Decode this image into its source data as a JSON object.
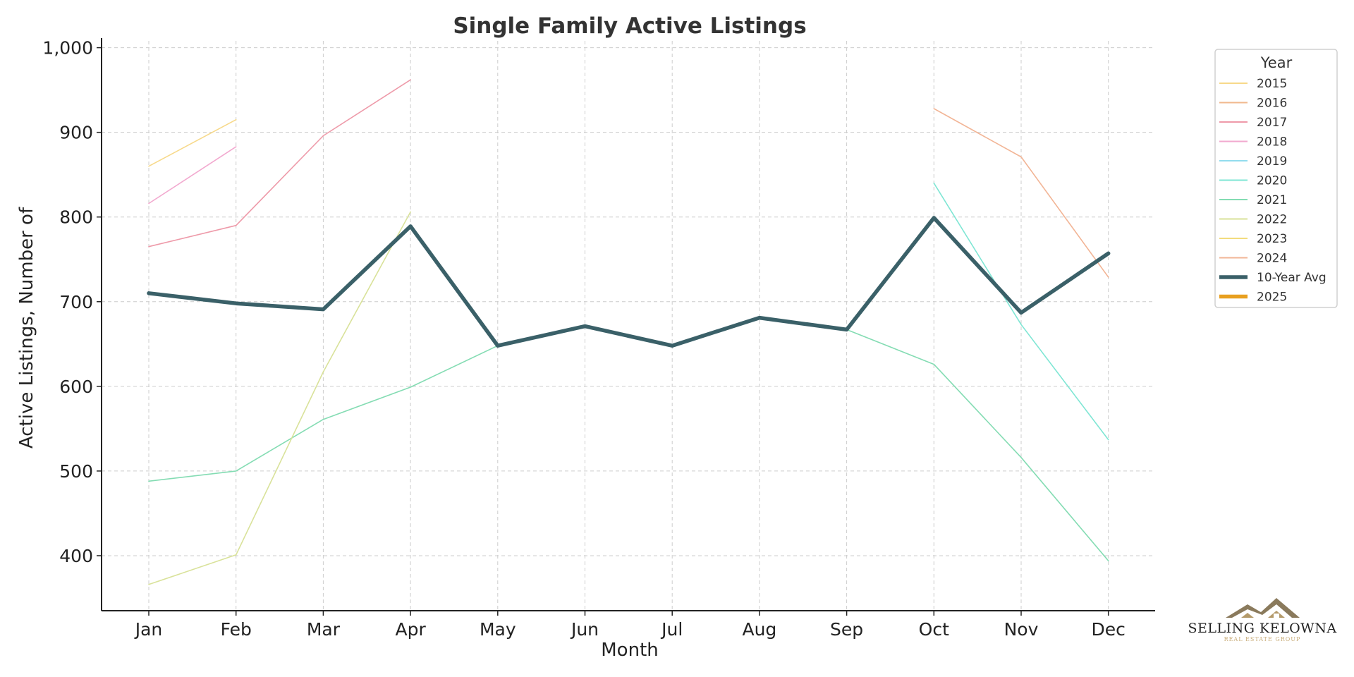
{
  "colors": {
    "2015": "#f7d98a",
    "2016": "#f1b98e",
    "2017": "#ee9aa9",
    "2018": "#f2a9cf",
    "2019": "#93dcee",
    "2020": "#7fe6d4",
    "2021": "#84dcb3",
    "2022": "#d9e29a",
    "2023": "#f2dc7e",
    "2024": "#f2b596",
    "avg": "#3a6068",
    "2025": "#e8a020"
  },
  "logo": {
    "name": "Selling Kelowna",
    "tagline": "Real Estate Group"
  },
  "chart_data": {
    "type": "line",
    "title": "Single Family Active Listings",
    "xlabel": "Month",
    "ylabel": "Active Listings, Number of",
    "categories": [
      "Jan",
      "Feb",
      "Mar",
      "Apr",
      "May",
      "Jun",
      "Jul",
      "Aug",
      "Sep",
      "Oct",
      "Nov",
      "Dec"
    ],
    "ylim": [
      335,
      1008
    ],
    "yticks": [
      400,
      500,
      600,
      700,
      800,
      900,
      1000
    ],
    "ytick_labels": [
      "400",
      "500",
      "600",
      "700",
      "800",
      "900",
      "1,000"
    ],
    "grid": true,
    "legend": {
      "title": "Year",
      "placement": "outside-right"
    },
    "series": [
      {
        "name": "2015",
        "color_key": "2015",
        "width": 1.6,
        "values": [
          860,
          915,
          null,
          null,
          null,
          null,
          null,
          null,
          null,
          null,
          null,
          null
        ]
      },
      {
        "name": "2016",
        "color_key": "2016",
        "width": 1.6,
        "values": [
          null,
          null,
          null,
          null,
          null,
          null,
          null,
          null,
          null,
          null,
          null,
          null
        ]
      },
      {
        "name": "2017",
        "color_key": "2017",
        "width": 1.6,
        "values": [
          765,
          790,
          896,
          962,
          null,
          null,
          null,
          null,
          null,
          null,
          null,
          null
        ]
      },
      {
        "name": "2018",
        "color_key": "2018",
        "width": 1.6,
        "values": [
          816,
          883,
          null,
          null,
          null,
          null,
          null,
          null,
          null,
          null,
          null,
          null
        ]
      },
      {
        "name": "2019",
        "color_key": "2019",
        "width": 1.6,
        "values": [
          null,
          null,
          null,
          null,
          null,
          null,
          null,
          null,
          null,
          null,
          null,
          null
        ]
      },
      {
        "name": "2020",
        "color_key": "2020",
        "width": 1.6,
        "values": [
          null,
          null,
          null,
          null,
          null,
          null,
          null,
          null,
          null,
          840,
          673,
          537
        ]
      },
      {
        "name": "2021",
        "color_key": "2021",
        "width": 1.6,
        "values": [
          488,
          500,
          561,
          599,
          648,
          null,
          null,
          null,
          667,
          626,
          516,
          394
        ]
      },
      {
        "name": "2022",
        "color_key": "2022",
        "width": 1.6,
        "values": [
          366,
          401,
          617,
          806,
          null,
          null,
          null,
          null,
          null,
          null,
          null,
          null
        ]
      },
      {
        "name": "2023",
        "color_key": "2023",
        "width": 1.6,
        "values": [
          null,
          null,
          null,
          null,
          null,
          null,
          null,
          null,
          null,
          null,
          null,
          null
        ]
      },
      {
        "name": "2024",
        "color_key": "2024",
        "width": 1.6,
        "values": [
          null,
          null,
          null,
          null,
          null,
          null,
          null,
          null,
          null,
          928,
          871,
          729
        ]
      },
      {
        "name": "10-Year Avg",
        "color_key": "avg",
        "width": 5.5,
        "values": [
          710,
          698,
          691,
          789,
          648,
          671,
          648,
          681,
          667,
          799,
          687,
          757
        ]
      },
      {
        "name": "2025",
        "color_key": "2025",
        "width": 5.5,
        "values": [
          null,
          null,
          null,
          null,
          null,
          null,
          null,
          null,
          null,
          null,
          null,
          null
        ]
      }
    ]
  }
}
